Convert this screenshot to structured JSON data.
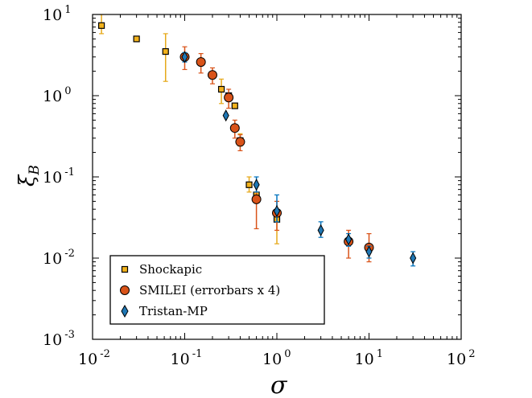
{
  "chart_data": {
    "type": "scatter",
    "xlabel": "σ",
    "ylabel_base": "ξ",
    "ylabel_sub": "B",
    "xscale": "log",
    "yscale": "log",
    "xlim": [
      0.01,
      100
    ],
    "ylim": [
      0.001,
      10
    ],
    "x_ticks": [
      {
        "value": 0.01,
        "base": "10",
        "exp": "-2"
      },
      {
        "value": 0.1,
        "base": "10",
        "exp": "-1"
      },
      {
        "value": 1,
        "base": "10",
        "exp": "0"
      },
      {
        "value": 10,
        "base": "10",
        "exp": "1"
      },
      {
        "value": 100,
        "base": "10",
        "exp": "2"
      }
    ],
    "y_ticks": [
      {
        "value": 0.001,
        "base": "10",
        "exp": "-3"
      },
      {
        "value": 0.01,
        "base": "10",
        "exp": "-2"
      },
      {
        "value": 0.1,
        "base": "10",
        "exp": "-1"
      },
      {
        "value": 1,
        "base": "10",
        "exp": "0"
      },
      {
        "value": 10,
        "base": "10",
        "exp": "1"
      }
    ],
    "grid": false,
    "legend_position": "bottom-left",
    "series": [
      {
        "name": "Shockapic",
        "marker": "square",
        "color": "#f2b21c",
        "error_color": "#e6a91a",
        "points": [
          {
            "x": 0.0125,
            "y": 7.3,
            "lo": 5.8,
            "hi": 10
          },
          {
            "x": 0.03,
            "y": 5.0
          },
          {
            "x": 0.062,
            "y": 3.5,
            "lo": 1.5,
            "hi": 5.8
          },
          {
            "x": 0.1,
            "y": 3.0
          },
          {
            "x": 0.15,
            "y": 2.6
          },
          {
            "x": 0.2,
            "y": 1.8
          },
          {
            "x": 0.25,
            "y": 1.2,
            "lo": 0.8,
            "hi": 1.6
          },
          {
            "x": 0.3,
            "y": 1.0
          },
          {
            "x": 0.35,
            "y": 0.75
          },
          {
            "x": 0.4,
            "y": 0.28,
            "lo": 0.24,
            "hi": 0.34
          },
          {
            "x": 0.5,
            "y": 0.08,
            "lo": 0.065,
            "hi": 0.1
          },
          {
            "x": 0.6,
            "y": 0.06
          },
          {
            "x": 1.0,
            "y": 0.03,
            "lo": 0.015,
            "hi": 0.036
          }
        ]
      },
      {
        "name": "SMILEI (errorbars x 4)",
        "marker": "circle",
        "color": "#d95319",
        "error_color": "#d95319",
        "points": [
          {
            "x": 0.1,
            "y": 3.0,
            "lo": 2.1,
            "hi": 4.0
          },
          {
            "x": 0.15,
            "y": 2.6,
            "lo": 1.9,
            "hi": 3.3
          },
          {
            "x": 0.2,
            "y": 1.8,
            "lo": 1.4,
            "hi": 2.2
          },
          {
            "x": 0.3,
            "y": 0.95,
            "lo": 0.7,
            "hi": 1.2
          },
          {
            "x": 0.35,
            "y": 0.4,
            "lo": 0.3,
            "hi": 0.5
          },
          {
            "x": 0.4,
            "y": 0.27,
            "lo": 0.21,
            "hi": 0.33
          },
          {
            "x": 0.6,
            "y": 0.053,
            "lo": 0.023,
            "hi": 0.08
          },
          {
            "x": 1.0,
            "y": 0.036,
            "lo": 0.022,
            "hi": 0.05
          },
          {
            "x": 6.0,
            "y": 0.016,
            "lo": 0.01,
            "hi": 0.022
          },
          {
            "x": 10.0,
            "y": 0.0135,
            "lo": 0.009,
            "hi": 0.02
          }
        ]
      },
      {
        "name": "Tristan-MP",
        "marker": "diamond",
        "color": "#1f77b4",
        "error_color": "#0072bd",
        "points": [
          {
            "x": 0.1,
            "y": 3.0,
            "lo": 2.6,
            "hi": 3.4
          },
          {
            "x": 0.28,
            "y": 0.57
          },
          {
            "x": 0.6,
            "y": 0.08,
            "lo": 0.065,
            "hi": 0.1
          },
          {
            "x": 1.0,
            "y": 0.038,
            "lo": 0.028,
            "hi": 0.06
          },
          {
            "x": 3.0,
            "y": 0.022,
            "lo": 0.018,
            "hi": 0.028
          },
          {
            "x": 6.0,
            "y": 0.017,
            "lo": 0.014,
            "hi": 0.02
          },
          {
            "x": 10.0,
            "y": 0.012,
            "lo": 0.01,
            "hi": 0.014
          },
          {
            "x": 30.0,
            "y": 0.01,
            "lo": 0.008,
            "hi": 0.012
          }
        ]
      }
    ]
  }
}
